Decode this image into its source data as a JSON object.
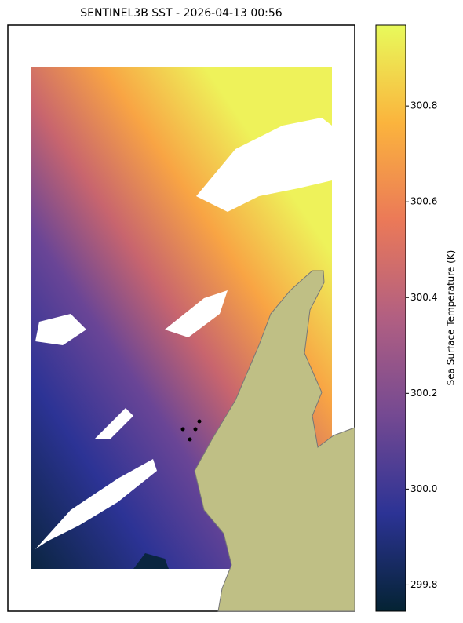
{
  "chart_data": {
    "type": "colorbar-map",
    "title": "SENTINEL3B SST - 2026-04-13 00:56",
    "colorbar_label": "Sea Surface Temperature (K)",
    "clim": [
      299.745,
      300.969
    ],
    "ticks": [
      299.8,
      {
        "value": 300.0,
        "label": "300.0"
      },
      300.2,
      300.4,
      300.6,
      300.8
    ],
    "colormap": [
      "#042333",
      "#2c3395",
      "#744992",
      "#b15f82",
      "#eb7958",
      "#fbb43d",
      "#e8fa5b"
    ]
  }
}
